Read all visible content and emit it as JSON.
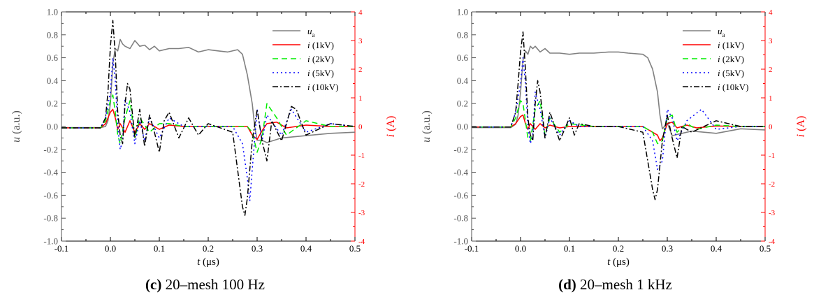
{
  "chart_data": [
    {
      "type": "line",
      "caption_label": "(c)",
      "caption_text": " 20–mesh 100 Hz",
      "xlabel_italic": "t",
      "xlabel_unit": " (μs)",
      "ylabel_left_italic": "u",
      "ylabel_left_unit": " (a.u.)",
      "ylabel_right_italic": "i",
      "ylabel_right_unit": " (A)",
      "xlim": [
        -0.1,
        0.5
      ],
      "ylim_left": [
        -1.0,
        1.0
      ],
      "ylim_right": [
        -4,
        4
      ],
      "xticks": [
        "-0.1",
        "0.0",
        "0.1",
        "0.2",
        "0.3",
        "0.4",
        "0.5"
      ],
      "yticks_left": [
        "-1.0",
        "-0.8",
        "-0.6",
        "-0.4",
        "-0.2",
        "0.0",
        "0.2",
        "0.4",
        "0.6",
        "0.8",
        "1.0"
      ],
      "yticks_right": [
        "-4",
        "-3",
        "-2",
        "-1",
        "0",
        "1",
        "2",
        "3",
        "4"
      ],
      "legend_position": "top-right",
      "series": [
        {
          "name": "u",
          "name_sub": "a",
          "axis": "left",
          "color": "#808080",
          "dash": "solid",
          "x": [
            -0.1,
            -0.02,
            -0.01,
            -0.005,
            0.0,
            0.005,
            0.01,
            0.015,
            0.02,
            0.025,
            0.03,
            0.04,
            0.05,
            0.06,
            0.07,
            0.08,
            0.09,
            0.1,
            0.12,
            0.14,
            0.16,
            0.18,
            0.2,
            0.22,
            0.24,
            0.26,
            0.27,
            0.28,
            0.29,
            0.295,
            0.3,
            0.31,
            0.32,
            0.35,
            0.4,
            0.45,
            0.5
          ],
          "y": [
            -0.01,
            -0.01,
            0.0,
            0.05,
            0.2,
            0.55,
            0.68,
            0.66,
            0.76,
            0.72,
            0.7,
            0.68,
            0.75,
            0.7,
            0.71,
            0.67,
            0.7,
            0.66,
            0.68,
            0.68,
            0.69,
            0.65,
            0.67,
            0.66,
            0.65,
            0.67,
            0.63,
            0.45,
            0.2,
            0.0,
            -0.12,
            -0.12,
            -0.14,
            -0.1,
            -0.08,
            -0.06,
            -0.05
          ]
        },
        {
          "name": "i (1kV)",
          "axis": "right",
          "color": "#ff0000",
          "dash": "solid",
          "x": [
            -0.1,
            -0.02,
            -0.01,
            0.0,
            0.005,
            0.01,
            0.015,
            0.02,
            0.03,
            0.04,
            0.05,
            0.06,
            0.07,
            0.08,
            0.1,
            0.12,
            0.15,
            0.2,
            0.25,
            0.28,
            0.29,
            0.3,
            0.31,
            0.32,
            0.34,
            0.36,
            0.4,
            0.45,
            0.5
          ],
          "y": [
            -0.05,
            -0.05,
            0.1,
            0.5,
            0.6,
            0.3,
            -0.1,
            0.1,
            -0.2,
            0.2,
            -0.2,
            0.1,
            -0.1,
            0.1,
            -0.1,
            0.05,
            0.0,
            0.0,
            0.0,
            0.0,
            -0.3,
            -0.45,
            -0.15,
            0.1,
            0.15,
            -0.05,
            0.05,
            0.0,
            0.0
          ]
        },
        {
          "name": "i (2kV)",
          "axis": "right",
          "color": "#00ee00",
          "dash": "8,5",
          "x": [
            -0.1,
            -0.02,
            -0.01,
            0.0,
            0.005,
            0.01,
            0.015,
            0.02,
            0.03,
            0.04,
            0.05,
            0.06,
            0.08,
            0.1,
            0.12,
            0.15,
            0.2,
            0.25,
            0.28,
            0.29,
            0.3,
            0.31,
            0.32,
            0.34,
            0.36,
            0.4,
            0.45,
            0.5
          ],
          "y": [
            -0.05,
            -0.05,
            0.2,
            0.9,
            1.1,
            0.5,
            -0.3,
            -0.6,
            0.3,
            0.9,
            -0.4,
            0.3,
            -0.2,
            0.1,
            0.1,
            0.0,
            0.0,
            0.0,
            0.0,
            -0.2,
            -0.9,
            -0.4,
            0.8,
            0.3,
            -0.3,
            0.2,
            0.0,
            0.0
          ]
        },
        {
          "name": "i (5kV)",
          "axis": "right",
          "color": "#0000ff",
          "dash": "2,4",
          "x": [
            -0.1,
            -0.02,
            -0.01,
            0.0,
            0.005,
            0.01,
            0.015,
            0.02,
            0.025,
            0.03,
            0.04,
            0.05,
            0.06,
            0.07,
            0.08,
            0.1,
            0.12,
            0.15,
            0.2,
            0.25,
            0.27,
            0.28,
            0.285,
            0.29,
            0.3,
            0.31,
            0.32,
            0.35,
            0.37,
            0.4,
            0.45,
            0.5
          ],
          "y": [
            -0.05,
            -0.05,
            0.3,
            1.2,
            2.4,
            1.6,
            0.0,
            -0.8,
            -0.5,
            1.0,
            0.5,
            -0.6,
            0.2,
            -0.5,
            0.3,
            -0.4,
            0.3,
            0.0,
            0.0,
            0.0,
            -0.6,
            -1.8,
            -2.6,
            -1.5,
            0.6,
            -0.5,
            0.4,
            -0.3,
            0.6,
            -0.2,
            0.1,
            0.0
          ]
        },
        {
          "name": "i (10kV)",
          "axis": "right",
          "color": "#000000",
          "dash": "8,3,2,3",
          "x": [
            -0.1,
            -0.02,
            -0.01,
            -0.005,
            0.0,
            0.005,
            0.01,
            0.015,
            0.02,
            0.025,
            0.03,
            0.035,
            0.04,
            0.05,
            0.06,
            0.07,
            0.08,
            0.09,
            0.1,
            0.11,
            0.12,
            0.14,
            0.16,
            0.18,
            0.2,
            0.25,
            0.26,
            0.27,
            0.275,
            0.28,
            0.29,
            0.3,
            0.31,
            0.32,
            0.33,
            0.35,
            0.37,
            0.38,
            0.4,
            0.45,
            0.5
          ],
          "y": [
            -0.05,
            -0.05,
            0.3,
            1.2,
            2.8,
            3.7,
            2.5,
            0.5,
            -0.3,
            -0.6,
            0.8,
            1.5,
            1.3,
            -0.4,
            0.6,
            -0.7,
            0.4,
            -0.2,
            -0.9,
            0.2,
            0.5,
            -0.4,
            0.3,
            -0.3,
            0.1,
            -0.2,
            -1.5,
            -2.8,
            -3.1,
            -2.5,
            -0.5,
            0.6,
            -0.5,
            -1.2,
            0.2,
            -0.5,
            0.7,
            0.6,
            -0.3,
            0.1,
            0.0
          ]
        }
      ]
    },
    {
      "type": "line",
      "caption_label": "(d)",
      "caption_text": " 20–mesh 1 kHz",
      "xlabel_italic": "t",
      "xlabel_unit": " (μs)",
      "ylabel_left_italic": "u",
      "ylabel_left_unit": " (a.u.)",
      "ylabel_right_italic": "i",
      "ylabel_right_unit": " (A)",
      "xlim": [
        -0.1,
        0.5
      ],
      "ylim_left": [
        -1.0,
        1.0
      ],
      "ylim_right": [
        -4,
        4
      ],
      "xticks": [
        "-0.1",
        "0.0",
        "0.1",
        "0.2",
        "0.3",
        "0.4",
        "0.5"
      ],
      "yticks_left": [
        "-1.0",
        "-0.8",
        "-0.6",
        "-0.4",
        "-0.2",
        "0.0",
        "0.2",
        "0.4",
        "0.6",
        "0.8",
        "1.0"
      ],
      "yticks_right": [
        "-4",
        "-3",
        "-2",
        "-1",
        "0",
        "1",
        "2",
        "3",
        "4"
      ],
      "legend_position": "top-right",
      "series": [
        {
          "name": "u",
          "name_sub": "a",
          "axis": "left",
          "color": "#808080",
          "dash": "solid",
          "x": [
            -0.1,
            -0.02,
            -0.01,
            -0.005,
            0.0,
            0.005,
            0.01,
            0.015,
            0.02,
            0.025,
            0.03,
            0.04,
            0.05,
            0.06,
            0.08,
            0.1,
            0.12,
            0.15,
            0.18,
            0.2,
            0.22,
            0.25,
            0.26,
            0.27,
            0.28,
            0.285,
            0.29,
            0.3,
            0.31,
            0.33,
            0.35,
            0.4,
            0.45,
            0.5
          ],
          "y": [
            -0.01,
            -0.01,
            0.02,
            0.1,
            0.3,
            0.58,
            0.66,
            0.63,
            0.7,
            0.68,
            0.7,
            0.65,
            0.68,
            0.64,
            0.64,
            0.63,
            0.64,
            0.64,
            0.65,
            0.65,
            0.64,
            0.63,
            0.6,
            0.5,
            0.3,
            0.1,
            -0.02,
            0.03,
            -0.08,
            -0.06,
            -0.04,
            -0.06,
            -0.02,
            -0.03
          ]
        },
        {
          "name": "i (1kV)",
          "axis": "right",
          "color": "#ff0000",
          "dash": "solid",
          "x": [
            -0.1,
            -0.02,
            -0.01,
            0.0,
            0.005,
            0.01,
            0.015,
            0.02,
            0.03,
            0.04,
            0.05,
            0.06,
            0.08,
            0.1,
            0.15,
            0.2,
            0.25,
            0.28,
            0.285,
            0.29,
            0.3,
            0.31,
            0.32,
            0.34,
            0.36,
            0.4,
            0.45,
            0.5
          ],
          "y": [
            -0.02,
            -0.02,
            0.1,
            0.35,
            0.4,
            0.1,
            -0.1,
            0.1,
            -0.1,
            0.1,
            -0.05,
            0.05,
            -0.05,
            0.0,
            0.0,
            0.0,
            0.0,
            -0.3,
            -0.5,
            -0.4,
            0.1,
            0.15,
            -0.05,
            0.05,
            -0.05,
            0.02,
            0.0,
            0.0
          ]
        },
        {
          "name": "i (2kV)",
          "axis": "right",
          "color": "#00ee00",
          "dash": "8,5",
          "x": [
            -0.1,
            -0.02,
            -0.01,
            0.0,
            0.005,
            0.01,
            0.015,
            0.02,
            0.03,
            0.04,
            0.05,
            0.06,
            0.08,
            0.1,
            0.15,
            0.2,
            0.25,
            0.27,
            0.28,
            0.29,
            0.3,
            0.31,
            0.32,
            0.34,
            0.36,
            0.4,
            0.45,
            0.5
          ],
          "y": [
            -0.02,
            -0.02,
            0.3,
            0.9,
            0.8,
            0.2,
            -0.4,
            -0.5,
            0.6,
            0.9,
            -0.3,
            0.3,
            -0.2,
            0.1,
            0.0,
            0.0,
            0.0,
            -0.2,
            -0.6,
            -0.5,
            0.3,
            0.4,
            -0.2,
            0.1,
            -0.1,
            0.05,
            0.0,
            0.0
          ]
        },
        {
          "name": "i (5kV)",
          "axis": "right",
          "color": "#0000ff",
          "dash": "2,4",
          "x": [
            -0.1,
            -0.02,
            -0.01,
            0.0,
            0.005,
            0.01,
            0.015,
            0.02,
            0.025,
            0.03,
            0.04,
            0.05,
            0.06,
            0.08,
            0.1,
            0.12,
            0.15,
            0.2,
            0.25,
            0.27,
            0.28,
            0.29,
            0.3,
            0.31,
            0.32,
            0.34,
            0.37,
            0.4,
            0.45,
            0.5
          ],
          "y": [
            -0.02,
            -0.02,
            0.5,
            1.5,
            2.4,
            1.5,
            0.0,
            -0.6,
            -0.3,
            1.2,
            0.6,
            -0.4,
            0.3,
            -0.3,
            0.2,
            0.0,
            0.0,
            0.0,
            0.0,
            -0.5,
            -1.5,
            -1.2,
            0.6,
            0.3,
            -0.5,
            0.2,
            0.6,
            -0.1,
            0.0,
            0.0
          ]
        },
        {
          "name": "i (10kV)",
          "axis": "right",
          "color": "#000000",
          "dash": "8,3,2,3",
          "x": [
            -0.1,
            -0.02,
            -0.01,
            -0.005,
            0.0,
            0.005,
            0.01,
            0.015,
            0.02,
            0.025,
            0.03,
            0.035,
            0.04,
            0.05,
            0.06,
            0.08,
            0.1,
            0.11,
            0.12,
            0.15,
            0.2,
            0.25,
            0.26,
            0.27,
            0.275,
            0.28,
            0.29,
            0.3,
            0.31,
            0.32,
            0.33,
            0.35,
            0.4,
            0.45,
            0.5
          ],
          "y": [
            -0.02,
            -0.02,
            0.5,
            1.5,
            2.6,
            3.3,
            2.0,
            0.3,
            -0.3,
            -0.5,
            0.8,
            1.6,
            1.2,
            -0.4,
            0.5,
            -0.5,
            0.3,
            -0.3,
            0.1,
            0.0,
            0.0,
            -0.2,
            -1.2,
            -2.2,
            -2.55,
            -2.2,
            -0.5,
            0.4,
            -0.4,
            -1.1,
            0.0,
            -0.2,
            0.2,
            0.0,
            0.0
          ]
        }
      ]
    }
  ]
}
